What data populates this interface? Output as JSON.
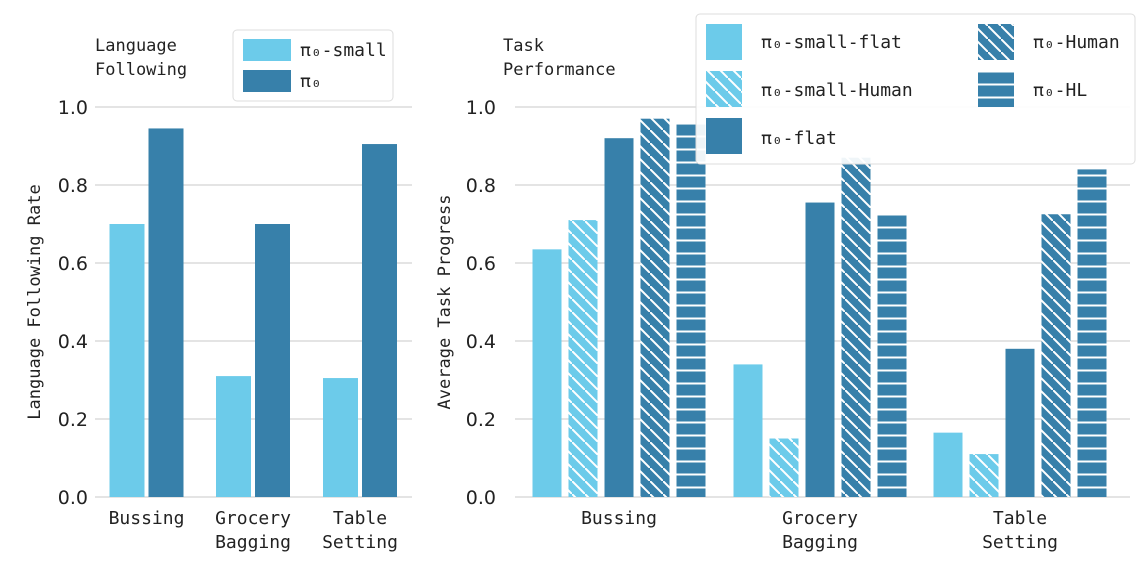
{
  "chart_data": [
    {
      "type": "bar",
      "title_lines": [
        "Language",
        "Following"
      ],
      "ylabel": "Language Following Rate",
      "ylim": [
        0,
        1.0
      ],
      "yticks": [
        "0.0",
        "0.2",
        "0.4",
        "0.6",
        "0.8",
        "1.0"
      ],
      "grid": true,
      "legend_position": "top-right",
      "categories": [
        [
          "Bussing"
        ],
        [
          "Grocery",
          "Bagging"
        ],
        [
          "Table",
          "Setting"
        ]
      ],
      "series": [
        {
          "name": "π₀-small",
          "values": [
            0.7,
            0.31,
            0.305
          ],
          "color": "#6ccbea",
          "hatch": "none"
        },
        {
          "name": "π₀",
          "values": [
            0.945,
            0.7,
            0.905
          ],
          "color": "#3780aa",
          "hatch": "none"
        }
      ]
    },
    {
      "type": "bar",
      "title_lines": [
        "Task",
        "Performance"
      ],
      "ylabel": "Average Task Progress",
      "ylim": [
        0,
        1.0
      ],
      "yticks": [
        "0.0",
        "0.2",
        "0.4",
        "0.6",
        "0.8",
        "1.0"
      ],
      "grid": true,
      "legend_position": "top-right",
      "categories": [
        [
          "Bussing"
        ],
        [
          "Grocery",
          "Bagging"
        ],
        [
          "Table",
          "Setting"
        ]
      ],
      "series": [
        {
          "name": "π₀-small-flat",
          "values": [
            0.635,
            0.34,
            0.165
          ],
          "color": "#6ccbea",
          "hatch": "none"
        },
        {
          "name": "π₀-small-Human",
          "values": [
            0.71,
            0.15,
            0.11
          ],
          "color": "#6ccbea",
          "hatch": "diagonal"
        },
        {
          "name": "π₀-flat",
          "values": [
            0.92,
            0.755,
            0.38
          ],
          "color": "#3780aa",
          "hatch": "none"
        },
        {
          "name": "π₀-Human",
          "values": [
            0.97,
            0.87,
            0.725
          ],
          "color": "#3780aa",
          "hatch": "diagonal"
        },
        {
          "name": "π₀-HL",
          "values": [
            0.955,
            0.725,
            0.84
          ],
          "color": "#3780aa",
          "hatch": "horizontal"
        }
      ]
    }
  ]
}
